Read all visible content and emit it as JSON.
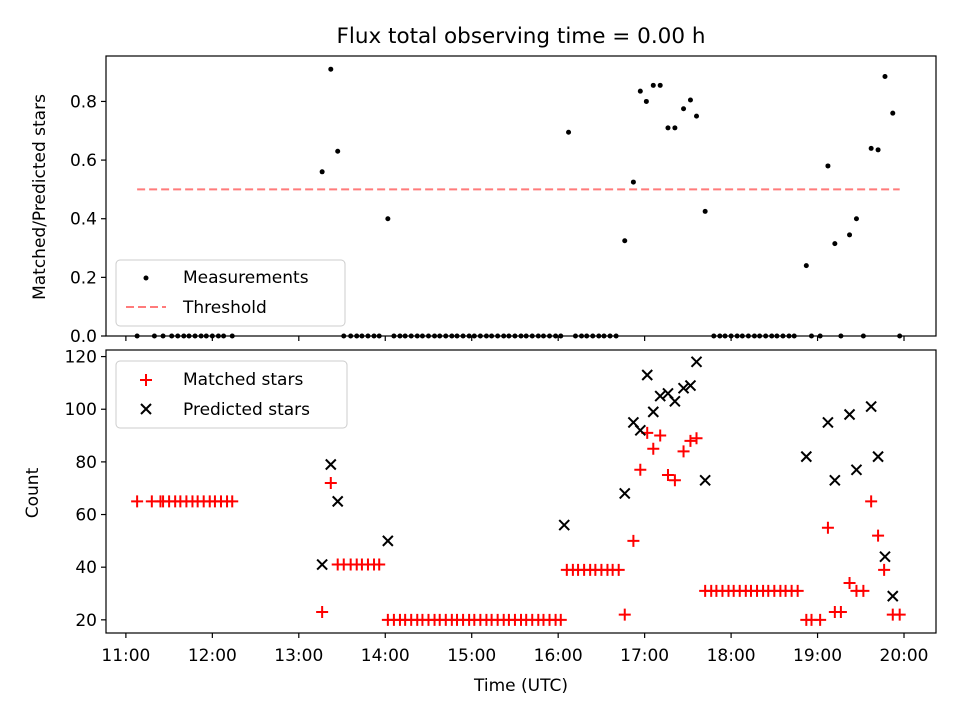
{
  "chart_data": [
    {
      "type": "scatter",
      "title": "Flux total observing time = 0.00 h",
      "xlabel": "",
      "ylabel": "Matched/Predicted stars",
      "xlim": [
        10.77,
        20.37
      ],
      "ylim": [
        0.0,
        0.955
      ],
      "yticks": [
        0.0,
        0.2,
        0.4,
        0.6,
        0.8
      ],
      "ytick_labels": [
        "0.0",
        "0.2",
        "0.4",
        "0.6",
        "0.8"
      ],
      "xticks": [
        11,
        12,
        13,
        14,
        15,
        16,
        17,
        18,
        19,
        20
      ],
      "legend_placement": "lower-left",
      "grid": false,
      "series": [
        {
          "name": "Measurements",
          "marker": "dot",
          "color": "#000000",
          "x": [
            11.13,
            11.33,
            11.43,
            11.53,
            11.6,
            11.67,
            11.73,
            11.8,
            11.87,
            11.93,
            12.0,
            12.07,
            12.13,
            12.23,
            13.27,
            13.37,
            13.45,
            13.52,
            13.6,
            13.67,
            13.73,
            13.8,
            13.87,
            13.93,
            14.03,
            14.1,
            14.17,
            14.23,
            14.3,
            14.37,
            14.43,
            14.5,
            14.57,
            14.63,
            14.7,
            14.77,
            14.83,
            14.9,
            14.97,
            15.03,
            15.1,
            15.17,
            15.23,
            15.3,
            15.37,
            15.43,
            15.5,
            15.57,
            15.63,
            15.7,
            15.77,
            15.83,
            15.9,
            15.97,
            16.03,
            16.12,
            16.2,
            16.27,
            16.33,
            16.4,
            16.47,
            16.53,
            16.6,
            16.67,
            16.77,
            16.87,
            16.95,
            17.02,
            17.1,
            17.18,
            17.27,
            17.35,
            17.45,
            17.53,
            17.6,
            17.7,
            17.8,
            17.87,
            17.93,
            18.0,
            18.07,
            18.13,
            18.2,
            18.27,
            18.33,
            18.4,
            18.47,
            18.53,
            18.6,
            18.67,
            18.73,
            18.87,
            18.93,
            19.03,
            19.12,
            19.2,
            19.27,
            19.37,
            19.45,
            19.53,
            19.62,
            19.7,
            19.78,
            19.87,
            19.95
          ],
          "y": [
            0.0,
            0.0,
            0.0,
            0.0,
            0.0,
            0.0,
            0.0,
            0.0,
            0.0,
            0.0,
            0.0,
            0.0,
            0.0,
            0.0,
            0.56,
            0.91,
            0.63,
            0.0,
            0.0,
            0.0,
            0.0,
            0.0,
            0.0,
            0.0,
            0.4,
            0.0,
            0.0,
            0.0,
            0.0,
            0.0,
            0.0,
            0.0,
            0.0,
            0.0,
            0.0,
            0.0,
            0.0,
            0.0,
            0.0,
            0.0,
            0.0,
            0.0,
            0.0,
            0.0,
            0.0,
            0.0,
            0.0,
            0.0,
            0.0,
            0.0,
            0.0,
            0.0,
            0.0,
            0.0,
            0.0,
            0.695,
            0.0,
            0.0,
            0.0,
            0.0,
            0.0,
            0.0,
            0.0,
            0.0,
            0.325,
            0.525,
            0.835,
            0.8,
            0.855,
            0.855,
            0.71,
            0.71,
            0.775,
            0.805,
            0.75,
            0.425,
            0.0,
            0.0,
            0.0,
            0.0,
            0.0,
            0.0,
            0.0,
            0.0,
            0.0,
            0.0,
            0.0,
            0.0,
            0.0,
            0.0,
            0.0,
            0.24,
            0.0,
            0.0,
            0.58,
            0.315,
            0.0,
            0.345,
            0.4,
            0.0,
            0.64,
            0.635,
            0.885,
            0.76,
            0.0
          ]
        },
        {
          "name": "Threshold",
          "type": "line",
          "style": "dashed",
          "color": "#ff7b7b",
          "x": [
            11.13,
            19.95
          ],
          "y": [
            0.5,
            0.5
          ]
        }
      ]
    },
    {
      "type": "scatter",
      "title": "",
      "xlabel": "Time (UTC)",
      "ylabel": "Count",
      "xlim": [
        10.77,
        20.37
      ],
      "ylim": [
        15,
        122.5
      ],
      "yticks": [
        20,
        40,
        60,
        80,
        100,
        120
      ],
      "ytick_labels": [
        "20",
        "40",
        "60",
        "80",
        "100",
        "120"
      ],
      "xticks": [
        11,
        12,
        13,
        14,
        15,
        16,
        17,
        18,
        19,
        20
      ],
      "xtick_labels": [
        "11:00",
        "12:00",
        "13:00",
        "14:00",
        "15:00",
        "16:00",
        "17:00",
        "18:00",
        "19:00",
        "20:00"
      ],
      "legend_placement": "top-left",
      "grid": false,
      "series": [
        {
          "name": "Matched stars",
          "marker": "plus",
          "color": "#ff0000",
          "x": [
            11.13,
            11.3,
            11.4,
            11.43,
            11.5,
            11.57,
            11.63,
            11.7,
            11.77,
            11.83,
            11.9,
            11.97,
            12.03,
            12.1,
            12.17,
            12.23,
            13.27,
            13.37,
            13.45,
            13.52,
            13.6,
            13.67,
            13.73,
            13.8,
            13.87,
            13.93,
            14.03,
            14.1,
            14.17,
            14.23,
            14.3,
            14.37,
            14.43,
            14.5,
            14.57,
            14.63,
            14.7,
            14.77,
            14.83,
            14.9,
            14.97,
            15.03,
            15.1,
            15.17,
            15.23,
            15.3,
            15.37,
            15.43,
            15.5,
            15.57,
            15.63,
            15.7,
            15.77,
            15.83,
            15.9,
            15.97,
            16.03,
            16.1,
            16.17,
            16.23,
            16.3,
            16.37,
            16.43,
            16.5,
            16.57,
            16.63,
            16.7,
            16.77,
            16.87,
            16.95,
            17.03,
            17.1,
            17.18,
            17.27,
            17.35,
            17.45,
            17.53,
            17.6,
            17.7,
            17.77,
            17.83,
            17.9,
            17.97,
            18.03,
            18.1,
            18.17,
            18.23,
            18.3,
            18.37,
            18.43,
            18.5,
            18.57,
            18.63,
            18.7,
            18.77,
            18.87,
            18.93,
            19.03,
            19.12,
            19.2,
            19.27,
            19.37,
            19.45,
            19.53,
            19.62,
            19.7,
            19.77,
            19.87,
            19.95
          ],
          "y": [
            65,
            65,
            65,
            65,
            65,
            65,
            65,
            65,
            65,
            65,
            65,
            65,
            65,
            65,
            65,
            65,
            23,
            72,
            41,
            41,
            41,
            41,
            41,
            41,
            41,
            41,
            20,
            20,
            20,
            20,
            20,
            20,
            20,
            20,
            20,
            20,
            20,
            20,
            20,
            20,
            20,
            20,
            20,
            20,
            20,
            20,
            20,
            20,
            20,
            20,
            20,
            20,
            20,
            20,
            20,
            20,
            20,
            39,
            39,
            39,
            39,
            39,
            39,
            39,
            39,
            39,
            39,
            22,
            50,
            77,
            91,
            85,
            90,
            75,
            73,
            84,
            88,
            89,
            31,
            31,
            31,
            31,
            31,
            31,
            31,
            31,
            31,
            31,
            31,
            31,
            31,
            31,
            31,
            31,
            31,
            20,
            20,
            20,
            55,
            23,
            23,
            34,
            31,
            31,
            65,
            52,
            39,
            22,
            22
          ]
        },
        {
          "name": "Predicted stars",
          "marker": "x",
          "color": "#000000",
          "x": [
            13.27,
            13.37,
            13.45,
            14.03,
            16.07,
            16.77,
            16.87,
            16.95,
            17.03,
            17.1,
            17.18,
            17.27,
            17.35,
            17.45,
            17.53,
            17.6,
            17.7,
            18.87,
            19.12,
            19.2,
            19.37,
            19.45,
            19.62,
            19.7,
            19.78,
            19.87
          ],
          "y": [
            41,
            79,
            65,
            50,
            56,
            68,
            95,
            92,
            113,
            99,
            105,
            106,
            103,
            108,
            109,
            118,
            73,
            82,
            95,
            73,
            98,
            77,
            101,
            82,
            44,
            29
          ]
        }
      ]
    }
  ]
}
